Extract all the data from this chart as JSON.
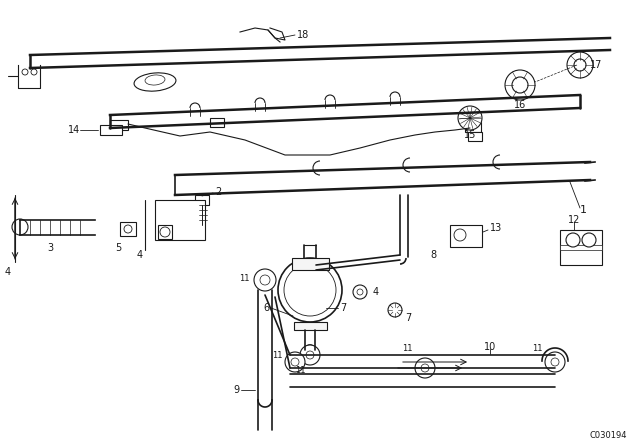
{
  "bg_color": "#ffffff",
  "line_color": "#1a1a1a",
  "watermark": "C030194",
  "fig_w": 6.4,
  "fig_h": 4.48,
  "dpi": 100
}
